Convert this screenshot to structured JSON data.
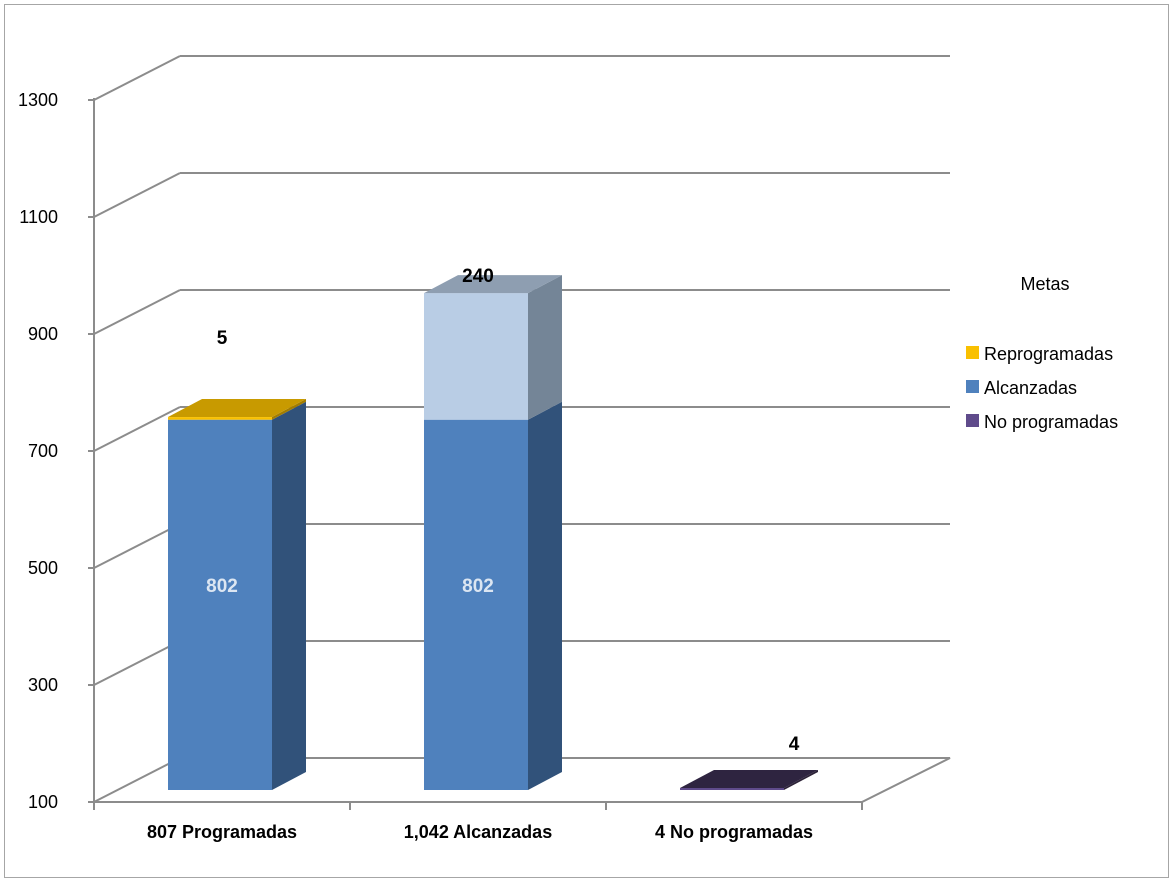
{
  "chart_data": {
    "type": "bar",
    "stacked": true,
    "style": "3d",
    "categories": [
      "807 Programadas",
      "1,042 Alcanzadas",
      "4 No programadas"
    ],
    "series": [
      {
        "name": "Alcanzadas",
        "values": [
          802,
          802,
          0
        ],
        "color": "#4f81bd",
        "side_color": "#31527a",
        "top_color": "#3f6a9c",
        "label_color": "#dce6f2"
      },
      {
        "name": "Reprogramadas",
        "values": [
          5,
          0,
          0
        ],
        "color": "#f9c000",
        "side_color": "#a37d00",
        "top_color": "#c89a00",
        "label_color": "#000000"
      },
      {
        "name": "Alcanzadas",
        "values": [
          0,
          240,
          0
        ],
        "color": "#b9cde5",
        "side_color": "#748597",
        "top_color": "#8e9eb1",
        "label_color": "#000000"
      },
      {
        "name": "No programadas",
        "values": [
          0,
          0,
          4
        ],
        "color": "#5f4b8b",
        "side_color": "#2c2237",
        "top_color": "#2e2440",
        "label_color": "#000000"
      }
    ],
    "data_labels": [
      {
        "category": 0,
        "text": "802",
        "value_at": 401,
        "color": "#dce6f2"
      },
      {
        "category": 0,
        "text": "5",
        "value_at": 880,
        "color": "#000000"
      },
      {
        "category": 1,
        "text": "802",
        "value_at": 401,
        "color": "#dce6f2"
      },
      {
        "category": 1,
        "text": "240",
        "value_at": 960,
        "color": "#000000"
      },
      {
        "category": 2,
        "text": "4",
        "value_at": 164,
        "color": "#000000"
      }
    ],
    "y_ticks": [
      "100",
      "300",
      "500",
      "700",
      "900",
      "1100",
      "1300"
    ],
    "ylim": [
      100,
      1300
    ],
    "grid": true,
    "legend": {
      "title": "Metas",
      "position": "right",
      "items": [
        {
          "label": "Reprogramadas",
          "color": "#f9c000"
        },
        {
          "label": "Alcanzadas",
          "color": "#4f81bd"
        },
        {
          "label": "No programadas",
          "color": "#5f4b8b"
        }
      ]
    },
    "title": "",
    "xlabel": "",
    "ylabel": ""
  }
}
